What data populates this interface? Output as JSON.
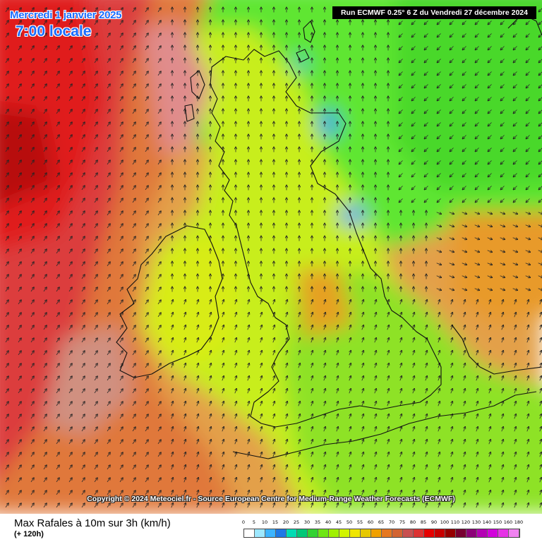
{
  "header": {
    "date": "Mercredi 1 janvier 2025",
    "time": "7:00 locale",
    "run": "Run ECMWF 0.25° 6 Z du Vendredi 27 décembre 2024"
  },
  "map": {
    "credit": "Copyright © 2024 Meteociel.fr - Source European Centre for Medium-Range Weather Forecasts (ECMWF)"
  },
  "legend": {
    "title": "Max Rafales à 10m sur 3h (km/h)",
    "lead": "(+ 120h)",
    "ticks": [
      "0",
      "5",
      "10",
      "15",
      "20",
      "25",
      "30",
      "35",
      "40",
      "45",
      "50",
      "55",
      "60",
      "65",
      "70",
      "75",
      "80",
      "85",
      "90",
      "100",
      "110",
      "120",
      "130",
      "140",
      "150",
      "160",
      "180"
    ],
    "colors": [
      "#ffffff",
      "#9ee8ff",
      "#3cb4ff",
      "#1e78e6",
      "#00dcb4",
      "#00c878",
      "#32d232",
      "#6ee614",
      "#a0f000",
      "#d2f500",
      "#f0e600",
      "#e6c800",
      "#f0a000",
      "#e67820",
      "#d26432",
      "#c85050",
      "#dc3232",
      "#e60000",
      "#c80000",
      "#960000",
      "#780032",
      "#8c0078",
      "#b400b4",
      "#d200dc",
      "#e632e6",
      "#f082f0"
    ]
  }
}
